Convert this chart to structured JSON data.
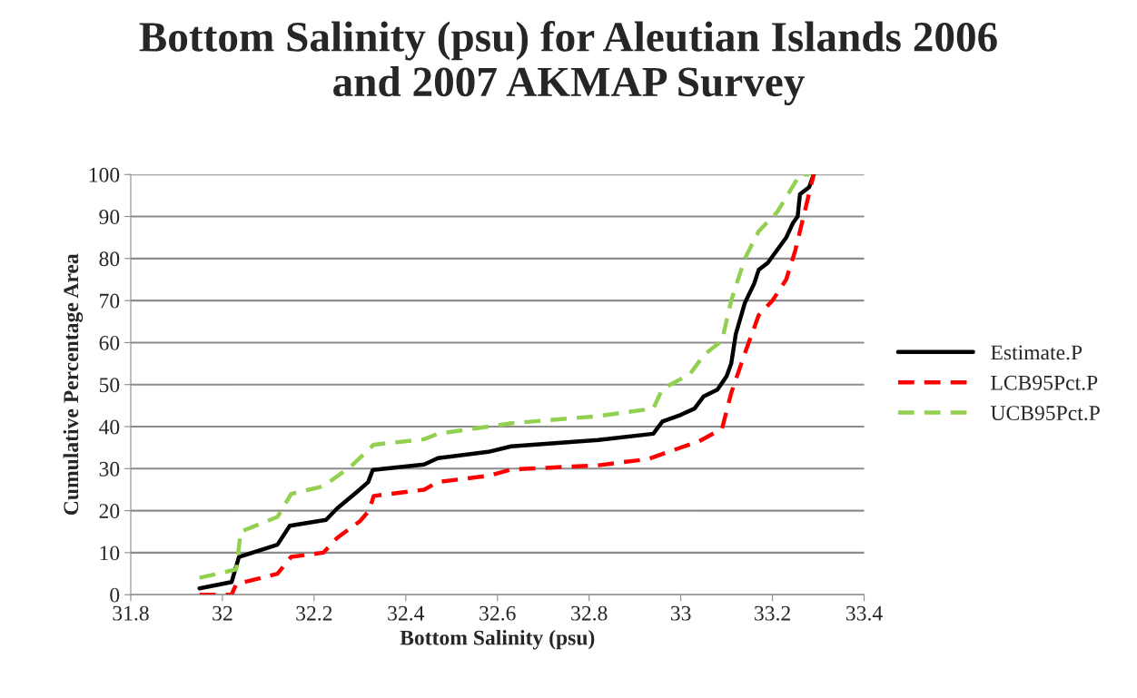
{
  "chart_data": {
    "type": "line",
    "title": "Bottom Salinity (psu) for Aleutian Islands 2006\nand 2007 AKMAP Survey",
    "xlabel": "Bottom Salinity (psu)",
    "ylabel": "Cumulative Percentage Area",
    "xlim": [
      31.8,
      33.4
    ],
    "xticks": [
      {
        "value": 31.8,
        "label": "31.8"
      },
      {
        "value": 32.0,
        "label": "32"
      },
      {
        "value": 32.2,
        "label": "32.2"
      },
      {
        "value": 32.4,
        "label": "32.4"
      },
      {
        "value": 32.6,
        "label": "32.6"
      },
      {
        "value": 32.8,
        "label": "32.8"
      },
      {
        "value": 33.0,
        "label": "33"
      },
      {
        "value": 33.2,
        "label": "33.2"
      },
      {
        "value": 33.4,
        "label": "33.4"
      }
    ],
    "ylim": [
      0,
      100
    ],
    "yticks": [
      0,
      10,
      20,
      30,
      40,
      50,
      60,
      70,
      80,
      90,
      100
    ],
    "grid": "y",
    "legend": "right",
    "marker": "none",
    "series": [
      {
        "name": "Estimate.P",
        "color": "#000000",
        "line_style": "solid",
        "x": [
          31.95,
          32.02,
          32.036,
          32.12,
          32.147,
          32.226,
          32.25,
          32.294,
          32.318,
          32.328,
          32.44,
          32.47,
          32.58,
          32.63,
          32.82,
          32.94,
          32.96,
          33.0,
          33.03,
          33.05,
          33.08,
          33.1,
          33.11,
          33.12,
          33.14,
          33.16,
          33.17,
          33.19,
          33.23,
          33.245,
          33.255,
          33.26,
          33.28,
          33.29
        ],
        "values": [
          1.5,
          3.0,
          9.0,
          11.9,
          16.4,
          17.8,
          20.5,
          24.5,
          26.8,
          29.7,
          31.0,
          32.5,
          34.0,
          35.3,
          36.8,
          38.3,
          41.2,
          42.8,
          44.3,
          47.2,
          48.8,
          52.0,
          55.0,
          62.0,
          69.5,
          74.0,
          77.3,
          79.0,
          85.0,
          88.5,
          90.0,
          95.3,
          97.0,
          100.0
        ]
      },
      {
        "name": "LCB95Pct.P",
        "color": "#ff0000",
        "line_style": "dashed",
        "x": [
          31.95,
          32.02,
          32.03,
          32.12,
          32.15,
          32.22,
          32.25,
          32.3,
          32.32,
          32.33,
          32.44,
          32.47,
          32.58,
          32.63,
          32.82,
          32.93,
          32.96,
          33.04,
          33.09,
          33.11,
          33.14,
          33.17,
          33.2,
          33.23,
          33.25,
          33.27,
          33.29
        ],
        "values": [
          0,
          0,
          2.5,
          5,
          9,
          10,
          13.5,
          17.5,
          20,
          23.5,
          25,
          26.8,
          28.3,
          29.8,
          30.8,
          32.3,
          33.5,
          36.5,
          39.5,
          48,
          57.5,
          66.5,
          70,
          75,
          82,
          91,
          100
        ]
      },
      {
        "name": "UCB95Pct.P",
        "color": "#92d050",
        "line_style": "dashed",
        "x": [
          31.95,
          32.03,
          32.04,
          32.12,
          32.15,
          32.22,
          32.28,
          32.33,
          32.44,
          32.47,
          32.58,
          32.63,
          32.82,
          32.94,
          32.96,
          33.02,
          33.05,
          33.09,
          33.11,
          33.14,
          33.17,
          33.21,
          33.26,
          33.28
        ],
        "values": [
          4,
          6,
          15,
          18.5,
          24,
          25.8,
          30.5,
          35.7,
          37,
          38.3,
          40,
          40.8,
          42.5,
          44.3,
          49,
          52.5,
          57,
          60.5,
          70,
          80,
          86.5,
          91,
          100,
          100
        ]
      }
    ]
  }
}
